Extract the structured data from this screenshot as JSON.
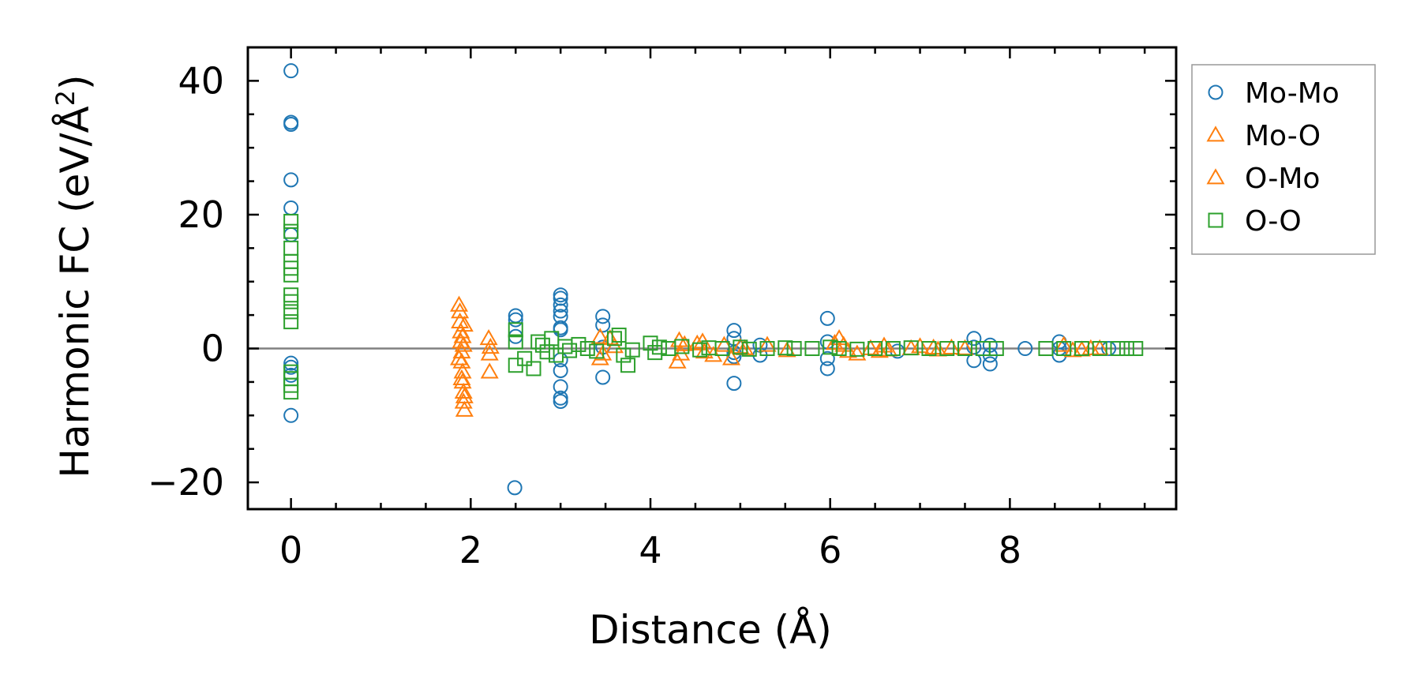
{
  "chart_data": {
    "type": "scatter",
    "title": "",
    "xlabel": "Distance (Å)",
    "ylabel_main": "Harmonic FC (eV/Å",
    "ylabel_sup": "2",
    "ylabel_close": ")",
    "xlim": [
      -0.48,
      9.85
    ],
    "ylim": [
      -24,
      45
    ],
    "xticks": [
      0,
      2,
      4,
      6,
      8
    ],
    "xtick_labels": [
      "0",
      "2",
      "4",
      "6",
      "8"
    ],
    "yticks": [
      -20,
      0,
      20,
      40
    ],
    "ytick_labels": [
      "−20",
      "0",
      "20",
      "40"
    ],
    "zero_line": true,
    "legend_position": "outside-right-top",
    "colors": {
      "Mo-Mo": "#1f77b4",
      "Mo-O": "#ff7f0e",
      "O-Mo": "#ff7f0e",
      "O-O": "#2ca02c"
    },
    "series": [
      {
        "name": "Mo-Mo",
        "marker": "circle",
        "color": "#1f77b4",
        "x": [
          0,
          0,
          0,
          0,
          0,
          0,
          0,
          0,
          0,
          0,
          2.49,
          2.5,
          2.5,
          2.5,
          3.0,
          3.0,
          3.0,
          3.0,
          3.0,
          3.0,
          3.0,
          3.0,
          3.0,
          3.0,
          3.0,
          3.0,
          3.47,
          3.47,
          3.47,
          3.47,
          4.93,
          4.93,
          4.93,
          4.93,
          4.93,
          5.22,
          5.22,
          5.97,
          5.97,
          5.97,
          5.97,
          6.75,
          7.6,
          7.6,
          7.6,
          7.78,
          7.78,
          7.78,
          8.17,
          8.55,
          8.55,
          8.55,
          9.1
        ],
        "y": [
          41.5,
          33.8,
          25.2,
          21.0,
          17.0,
          -2.2,
          -2.8,
          -10.0,
          33.5,
          -4.0,
          -20.8,
          4.9,
          4.3,
          1.8,
          8.0,
          7.5,
          6.5,
          5.6,
          4.8,
          3.1,
          -1.7,
          -3.3,
          -5.7,
          -7.4,
          -7.9,
          2.8,
          4.8,
          3.5,
          0.2,
          -4.3,
          2.7,
          1.5,
          -0.6,
          -1.2,
          -5.2,
          0.5,
          -1.0,
          4.5,
          1.0,
          -1.5,
          -3.0,
          -0.4,
          1.5,
          -1.8,
          0.2,
          -2.3,
          -1.0,
          0.5,
          0.0,
          1.0,
          -1.0,
          0.0,
          0.0
        ]
      },
      {
        "name": "Mo-O",
        "marker": "triangle",
        "color": "#ff7f0e",
        "x": [
          1.87,
          1.88,
          1.88,
          1.89,
          1.89,
          1.9,
          1.9,
          1.91,
          1.91,
          1.92,
          1.92,
          1.93,
          1.93,
          1.87,
          1.9,
          1.92,
          2.2,
          2.21,
          2.21,
          3.44,
          3.44,
          3.55,
          3.6,
          4.3,
          4.32,
          4.34,
          4.52,
          4.6,
          4.7,
          4.82,
          4.9,
          5.05,
          5.3,
          5.52,
          6.1,
          6.15,
          6.2,
          6.3,
          6.45,
          6.6,
          6.65,
          6.9,
          7.0,
          7.2,
          7.35,
          7.5,
          8.6,
          8.7,
          8.9,
          9.0
        ],
        "y": [
          6.5,
          5.5,
          4.0,
          2.5,
          1.0,
          -0.5,
          -2.0,
          -3.5,
          -5.0,
          -6.5,
          -8.0,
          -9.2,
          3.5,
          -1.5,
          -4.5,
          0.5,
          1.5,
          -0.8,
          -3.5,
          1.7,
          -1.5,
          1.5,
          0.3,
          -2.0,
          1.2,
          -0.8,
          0.7,
          -0.5,
          -1.0,
          0.5,
          -1.5,
          0.0,
          0.5,
          -0.3,
          1.5,
          0.5,
          -0.4,
          -0.8,
          0.0,
          0.4,
          -0.2,
          0.0,
          0.3,
          -0.2,
          0.1,
          0.0,
          0.5,
          -0.3,
          0.0,
          0.0
        ]
      },
      {
        "name": "O-Mo",
        "marker": "triangle",
        "color": "#ff7f0e",
        "x": [
          1.91,
          1.93,
          2.22,
          3.47,
          4.38,
          4.58,
          5.0,
          6.05,
          6.55,
          7.15,
          8.8
        ],
        "y": [
          1.8,
          -7.2,
          0.2,
          -0.8,
          0.6,
          1.0,
          0.2,
          0.8,
          -0.4,
          0.1,
          -0.2
        ]
      },
      {
        "name": "O-O",
        "marker": "square",
        "color": "#2ca02c",
        "x": [
          0,
          0,
          0,
          0,
          0,
          0,
          0,
          0,
          0,
          0,
          0,
          0,
          0,
          0,
          2.5,
          2.5,
          2.5,
          2.6,
          2.7,
          2.75,
          2.8,
          2.85,
          2.9,
          2.95,
          3.05,
          3.1,
          3.2,
          3.3,
          3.4,
          3.6,
          3.65,
          3.7,
          3.75,
          3.8,
          4.0,
          4.05,
          4.1,
          4.2,
          4.35,
          4.55,
          4.65,
          4.8,
          5.0,
          5.1,
          5.3,
          5.5,
          5.6,
          5.8,
          6.0,
          6.1,
          6.3,
          6.5,
          6.7,
          6.9,
          7.1,
          7.3,
          7.5,
          7.7,
          7.85,
          8.4,
          8.6,
          8.8,
          9.0,
          9.2,
          9.3,
          9.4
        ],
        "y": [
          19.0,
          17.5,
          15.0,
          13.0,
          12.0,
          11.0,
          8.0,
          7.0,
          5.5,
          4.0,
          -3.5,
          -4.5,
          -5.5,
          -6.5,
          2.8,
          1.0,
          -2.5,
          -1.5,
          -3.0,
          1.0,
          0.5,
          -0.5,
          1.5,
          -1.0,
          0.3,
          -0.3,
          0.6,
          0.0,
          -0.4,
          1.5,
          2.0,
          -1.0,
          -2.5,
          -0.2,
          0.8,
          -0.6,
          0.2,
          0.0,
          0.3,
          -0.2,
          0.1,
          0.0,
          0.2,
          -0.1,
          0.0,
          0.1,
          0.0,
          0.0,
          0.2,
          0.0,
          -0.1,
          0.0,
          0.0,
          0.1,
          0.0,
          0.0,
          0.0,
          0.0,
          0.0,
          0.0,
          0.0,
          0.0,
          0.0,
          0.0,
          0.0,
          0.0
        ]
      }
    ],
    "legend": [
      {
        "label": "Mo-Mo",
        "marker": "circle",
        "color": "#1f77b4"
      },
      {
        "label": "Mo-O",
        "marker": "triangle",
        "color": "#ff7f0e"
      },
      {
        "label": "O-Mo",
        "marker": "triangle",
        "color": "#ff7f0e"
      },
      {
        "label": "O-O",
        "marker": "square",
        "color": "#2ca02c"
      }
    ]
  }
}
